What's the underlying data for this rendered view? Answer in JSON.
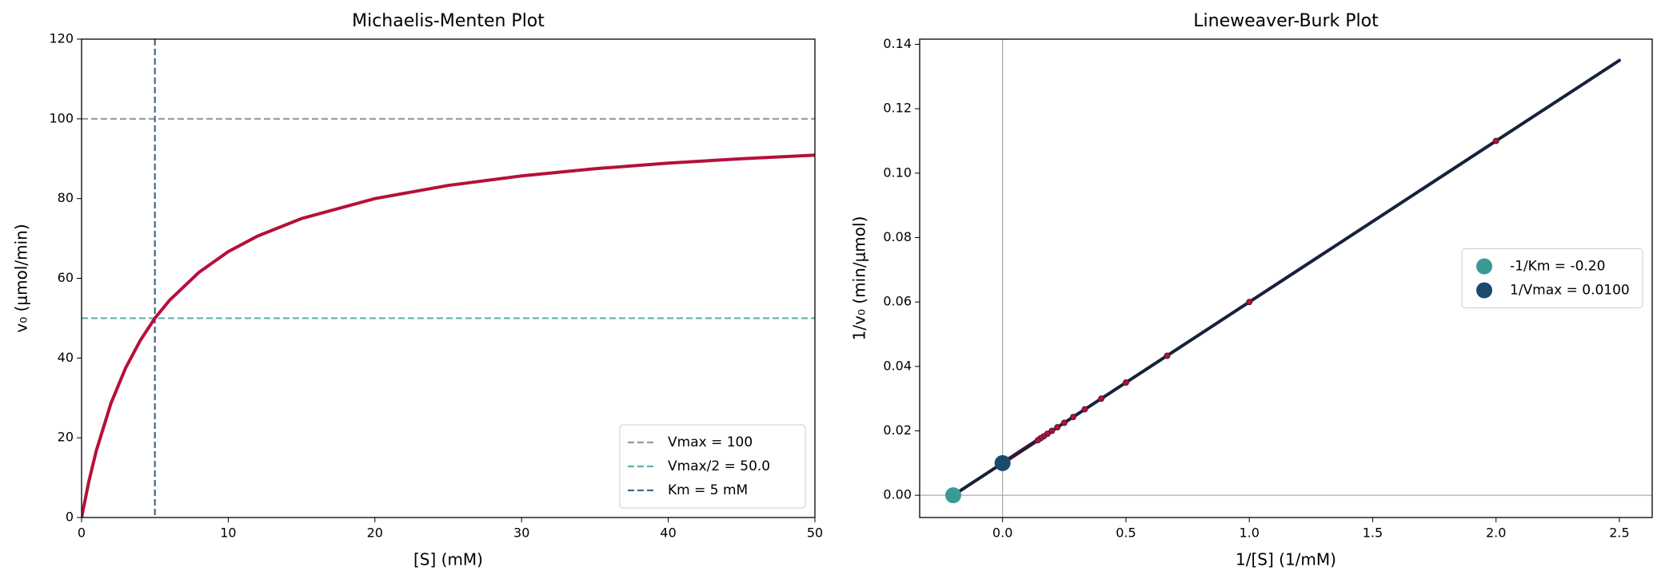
{
  "chart_data": [
    {
      "type": "line",
      "title": "Michaelis-Menten Plot",
      "xlabel": "[S] (mM)",
      "ylabel": "v₀ (μmol/min)",
      "xlim": [
        0,
        50
      ],
      "ylim": [
        0,
        120
      ],
      "xticks": [
        0,
        10,
        20,
        30,
        40,
        50
      ],
      "yticks": [
        0,
        20,
        40,
        60,
        80,
        100,
        120
      ],
      "legend": "lower right",
      "series": [
        {
          "color": "#b5103a",
          "x": [
            0,
            0.5,
            1,
            2,
            3,
            4,
            5,
            6,
            8,
            10,
            12,
            15,
            20,
            25,
            30,
            35,
            40,
            45,
            50
          ],
          "values": [
            0,
            9.1,
            16.7,
            28.6,
            37.5,
            44.4,
            50,
            54.5,
            61.5,
            66.7,
            70.6,
            75,
            80,
            83.3,
            85.7,
            87.5,
            88.9,
            90,
            90.9
          ]
        }
      ],
      "reference_lines": [
        {
          "name": "Vmax = 100",
          "orientation": "horizontal",
          "value": 100,
          "color": "#999999"
        },
        {
          "name": "Vmax/2 = 50.0",
          "orientation": "horizontal",
          "value": 50,
          "color": "#5cb3ae"
        },
        {
          "name": "Km = 5 mM",
          "orientation": "vertical",
          "value": 5,
          "color": "#44698a"
        }
      ]
    },
    {
      "type": "line",
      "title": "Lineweaver-Burk Plot",
      "xlabel": "1/[S] (1/mM)",
      "ylabel": "1/v₀ (min/μmol)",
      "xlim": [
        -0.336,
        2.633
      ],
      "ylim": [
        -0.0069,
        0.1416
      ],
      "xticks": [
        {
          "value": 0,
          "label": "0.0"
        },
        {
          "value": 0.5,
          "label": "0.5"
        },
        {
          "value": 1,
          "label": "1.0"
        },
        {
          "value": 1.5,
          "label": "1.5"
        },
        {
          "value": 2,
          "label": "2.0"
        },
        {
          "value": 2.5,
          "label": "2.5"
        }
      ],
      "yticks": [
        {
          "value": 0,
          "label": "0.00"
        },
        {
          "value": 0.02,
          "label": "0.02"
        },
        {
          "value": 0.04,
          "label": "0.04"
        },
        {
          "value": 0.06,
          "label": "0.06"
        },
        {
          "value": 0.08,
          "label": "0.08"
        },
        {
          "value": 0.1,
          "label": "0.10"
        },
        {
          "value": 0.12,
          "label": "0.12"
        },
        {
          "value": 0.14,
          "label": "0.14"
        }
      ],
      "legend": "center right",
      "zero_lines": true,
      "series": [
        {
          "color": "#b5103a",
          "x": [
            0.02,
            0.2
          ],
          "values": [
            0.011,
            0.02
          ]
        },
        {
          "color": "#16213a",
          "x": [
            -0.2,
            2.5
          ],
          "values": [
            0,
            0.135
          ]
        }
      ],
      "scatter": {
        "color": "#b5103a",
        "x": [
          2,
          1,
          0.667,
          0.5,
          0.4,
          0.333,
          0.286,
          0.25,
          0.222,
          0.2,
          0.182,
          0.167,
          0.154,
          0.143
        ],
        "values": [
          0.11,
          0.06,
          0.0433,
          0.035,
          0.03,
          0.0267,
          0.0243,
          0.0225,
          0.0211,
          0.02,
          0.0191,
          0.0183,
          0.0177,
          0.0171
        ]
      },
      "points": [
        {
          "name": "-1/Km = -0.20",
          "x": -0.2,
          "value": 0,
          "color": "#3a9a96"
        },
        {
          "name": "1/Vmax = 0.0100",
          "x": 0,
          "value": 0.01,
          "color": "#1a4a6e"
        }
      ]
    }
  ]
}
